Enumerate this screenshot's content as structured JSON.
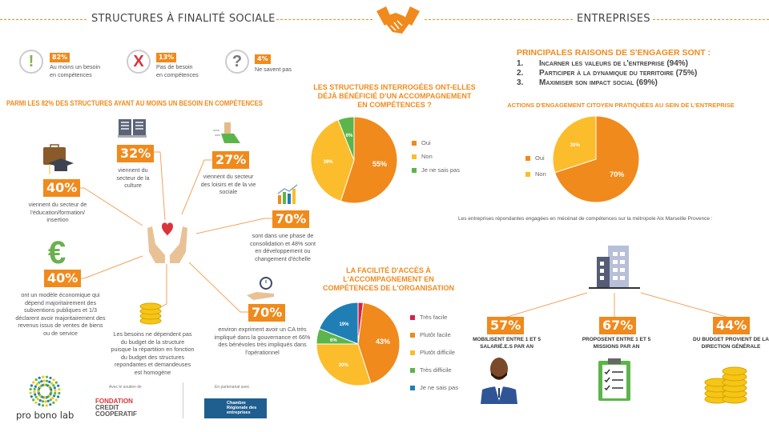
{
  "header": {
    "left_title": "STRUCTURES À FINALITÉ SOCIALE",
    "right_title": "ENTREPRISES"
  },
  "needs": [
    {
      "icon": "exclamation-icon",
      "glyph": "!",
      "color": "#7ab648",
      "value": "82%",
      "label1": "Au moins un besoin",
      "label2": "en compétences"
    },
    {
      "icon": "cross-icon",
      "glyph": "X",
      "color": "#d9343a",
      "value": "13%",
      "label1": "Pas de besoin",
      "label2": "en compétences"
    },
    {
      "icon": "question-icon",
      "glyph": "?",
      "color": "#777777",
      "value": "4%",
      "label1": "Ne savent pas",
      "label2": ""
    }
  ],
  "among_title": "PARMI LES 82% DES STRUCTURES AYANT AU MOINS UN BESOIN EN COMPÉTENCES",
  "stats": {
    "culture": {
      "value": "32%",
      "text": "viennent du secteur de la culture"
    },
    "loisirs": {
      "value": "27%",
      "text": "viennent du secteur des loisirs et de la vie sociale"
    },
    "education": {
      "value": "40%",
      "text": "viennent du secteur de l'éducation/formation/ insertion"
    },
    "phase": {
      "value": "70%",
      "text": "sont dans une phase de consolidation et 48% sont en développement ou changement d'échelle"
    },
    "economic": {
      "value": "40%",
      "text": "ont un modèle économique qui dépend majoritairement des subventions publiques et 1/3 déclarent avoir majoritairement des revenus issus de ventes de biens ou de service"
    },
    "budget": {
      "text": "Les besoins ne dépendent pas du budget de la structure puisque la répartition en fonction du budget des structures repondantes et demandeuses est homogène"
    },
    "ca": {
      "value": "70%",
      "text": "environ expriment avoir un CA très impliqué dans la gouvernance et 66% des bénévoles très impliqués dans l'opérationnel"
    }
  },
  "reasons": {
    "title": "PRINCIPALES RAISONS DE S'ENGAGER SONT :",
    "items": [
      {
        "num": "1.",
        "text": "Incarner les valeurs de l'entreprise (94%)"
      },
      {
        "num": "2.",
        "text": "Participer à la dynamique du territoire (75%)"
      },
      {
        "num": "3.",
        "text": "Maximiser son impact social (69%)"
      }
    ]
  },
  "companies_sentence": "Les entreprises répondantes engagées en mécénat de compétences sur la métropole Aix Marseille Provence :",
  "company_stats": [
    {
      "value": "57%",
      "text": "MOBILISENT ENTRE 1 ET 5 SALARIÉ.E.S PAR AN"
    },
    {
      "value": "67%",
      "text": "PROPOSENT ENTRE 1 ET 5 MISSIONS PAR AN"
    },
    {
      "value": "44%",
      "text": "DU BUDGET PROVIENT DE LA DIRECTION GÉNÉRALE"
    }
  ],
  "footer": {
    "logo1": "pro bono lab",
    "support_label": "Avec le soutien de",
    "logo2_line1": "FONDATION",
    "logo2_line2": "CREDIT",
    "logo2_line3": "COOPERATIF",
    "partner_label": "En partenariat avec",
    "logo3": "Chambre Régionale des entreprises"
  },
  "chart_data": [
    {
      "type": "pie",
      "title": "LES STRUCTURES INTERROGÉES ONT-ELLES DÉJÀ BÉNÉFICIÉ D'UN ACCOMPAGNEMENT EN COMPÉTENCES ?",
      "categories": [
        "Oui",
        "Non",
        "Je ne sais pas"
      ],
      "values": [
        55,
        39,
        6
      ],
      "labels": [
        "55%",
        "39%",
        "6%"
      ],
      "colors": [
        "#f08a1c",
        "#fbbd2b",
        "#5cb54a"
      ],
      "legend": "right"
    },
    {
      "type": "pie",
      "title": "ACTIONS D'ENGAGEMENT CITOYEN PRATIQUÉES AU SEIN DE L'ENTREPRISE",
      "categories": [
        "Oui",
        "Non"
      ],
      "values": [
        70,
        30
      ],
      "labels": [
        "70%",
        "30%"
      ],
      "colors": [
        "#f08a1c",
        "#fbbd2b"
      ],
      "legend": "left"
    },
    {
      "type": "pie",
      "title": "LA FACILITÉ D'ACCÈS À L'ACCOMPAGNEMENT EN COMPÉTENCES DE L'ORGANISATION",
      "categories": [
        "Très facile",
        "Plutôt facile",
        "Plutôt difficile",
        "Très difficile",
        "Je ne sais pas"
      ],
      "values": [
        2,
        43,
        30,
        6,
        19
      ],
      "labels": [
        "2%",
        "43%",
        "30%",
        "6%",
        "19%"
      ],
      "colors": [
        "#d6204a",
        "#f08a1c",
        "#fbbd2b",
        "#5cb54a",
        "#1f7fb5"
      ],
      "legend": "right"
    }
  ]
}
